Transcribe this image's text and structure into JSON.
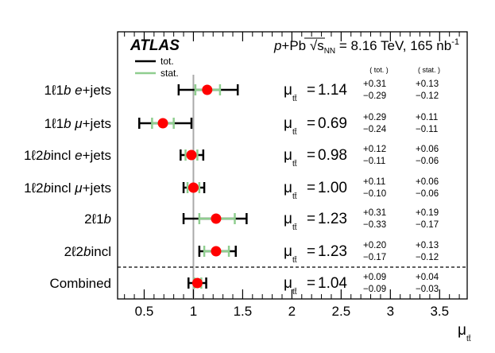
{
  "chart_data": {
    "type": "scatter",
    "experiment": "ATLAS",
    "collision_prefix": "p",
    "collision_mid": "+Pb ",
    "sqrt_symbol": "√",
    "sqrt_s_label": "s",
    "sqrt_s_sub": "NN",
    "energy_text": " = 8.16 TeV, 165 nb",
    "lumi_exp": "-1",
    "legend": [
      {
        "label": "tot.",
        "color": "#000000"
      },
      {
        "label": "stat.",
        "color": "#8fce8f"
      }
    ],
    "col_headers": {
      "tot": "( tot. )",
      "stat": "( stat. )"
    },
    "mu_symbol": "μ",
    "mu_sub": "tt̄",
    "equals": "=",
    "xlabel": "μ",
    "xlabel_sub": "tt̄",
    "xlim": [
      0.23,
      3.78
    ],
    "xticks": [
      0.5,
      1,
      1.5,
      2,
      2.5,
      3,
      3.5
    ],
    "xtick_labels": [
      "0.5",
      "1",
      "1.5",
      "2",
      "2.5",
      "3",
      "3.5"
    ],
    "reference_line": 1.0,
    "marker_color": "#ff0000",
    "stat_color": "#8fce8f",
    "rows": [
      {
        "label_pre": "1ℓ1",
        "label_it": "b",
        "label_post": " ",
        "label_it2": "e",
        "label_post2": "+jets",
        "value": 1.14,
        "value_text": "1.14",
        "tot_up": "+0.31",
        "tot_dn": "−0.29",
        "stat_up": "+0.13",
        "stat_dn": "−0.12",
        "tot": [
          0.31,
          0.29
        ],
        "stat": [
          0.13,
          0.12
        ]
      },
      {
        "label_pre": "1ℓ1",
        "label_it": "b",
        "label_post": " ",
        "label_it2": "μ",
        "label_post2": "+jets",
        "value": 0.69,
        "value_text": "0.69",
        "tot_up": "+0.29",
        "tot_dn": "−0.24",
        "stat_up": "+0.11",
        "stat_dn": "−0.11",
        "tot": [
          0.29,
          0.24
        ],
        "stat": [
          0.11,
          0.11
        ]
      },
      {
        "label_pre": "1ℓ2",
        "label_it": "b",
        "label_post": "incl ",
        "label_it2": "e",
        "label_post2": "+jets",
        "value": 0.98,
        "value_text": "0.98",
        "tot_up": "+0.12",
        "tot_dn": "−0.11",
        "stat_up": "+0.06",
        "stat_dn": "−0.06",
        "tot": [
          0.12,
          0.11
        ],
        "stat": [
          0.06,
          0.06
        ]
      },
      {
        "label_pre": "1ℓ2",
        "label_it": "b",
        "label_post": "incl ",
        "label_it2": "μ",
        "label_post2": "+jets",
        "value": 1.0,
        "value_text": "1.00",
        "tot_up": "+0.11",
        "tot_dn": "−0.10",
        "stat_up": "+0.06",
        "stat_dn": "−0.06",
        "tot": [
          0.11,
          0.1
        ],
        "stat": [
          0.06,
          0.06
        ]
      },
      {
        "label_pre": "2ℓ1",
        "label_it": "b",
        "label_post": "",
        "label_it2": "",
        "label_post2": "",
        "value": 1.23,
        "value_text": "1.23",
        "tot_up": "+0.31",
        "tot_dn": "−0.33",
        "stat_up": "+0.19",
        "stat_dn": "−0.17",
        "tot": [
          0.31,
          0.33
        ],
        "stat": [
          0.19,
          0.17
        ]
      },
      {
        "label_pre": "2ℓ2",
        "label_it": "b",
        "label_post": "incl",
        "label_it2": "",
        "label_post2": "",
        "value": 1.23,
        "value_text": "1.23",
        "tot_up": "+0.20",
        "tot_dn": "−0.17",
        "stat_up": "+0.13",
        "stat_dn": "−0.12",
        "tot": [
          0.2,
          0.17
        ],
        "stat": [
          0.13,
          0.12
        ]
      },
      {
        "label_pre": "Combined",
        "label_it": "",
        "label_post": "",
        "label_it2": "",
        "label_post2": "",
        "value": 1.04,
        "value_text": "1.04",
        "tot_up": "+0.09",
        "tot_dn": "−0.09",
        "stat_up": "+0.04",
        "stat_dn": "−0.03",
        "tot": [
          0.09,
          0.09
        ],
        "stat": [
          0.04,
          0.03
        ]
      }
    ]
  }
}
